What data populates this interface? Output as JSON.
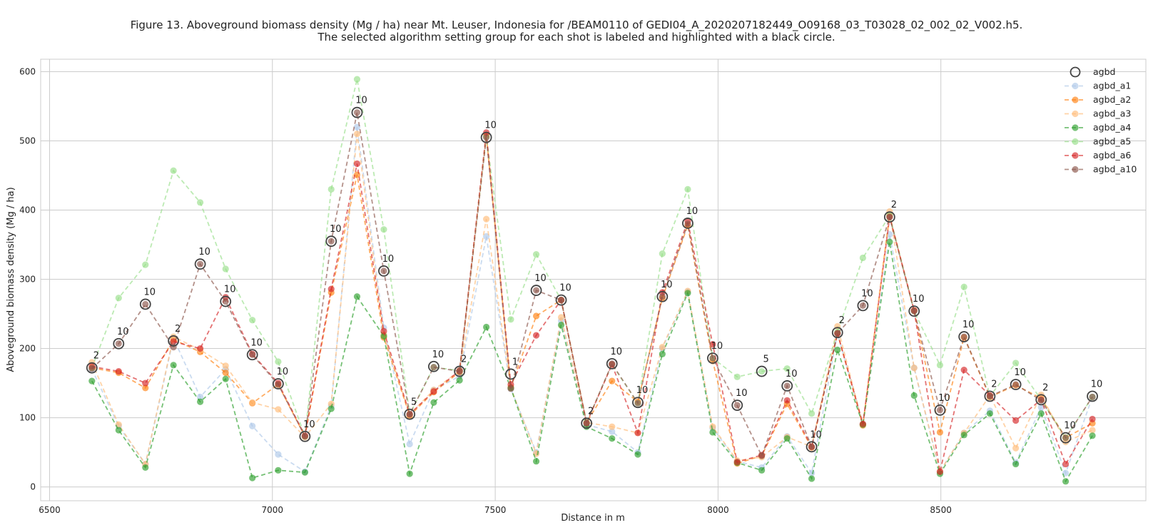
{
  "chart_data": {
    "type": "line",
    "title": "Figure 13. Aboveground biomass density (Mg / ha) near Mt. Leuser, Indonesia for /BEAM0110 of GEDI04_A_2020207182449_O09168_03_T03028_02_002_02_V002.h5.",
    "subtitle": "The selected algorithm setting group for each shot is labeled and highlighted with a black circle.",
    "xlabel": "Distance in m",
    "ylabel": "Aboveground biomass density (Mg / ha)",
    "xlim": [
      6480,
      8960
    ],
    "ylim": [
      -20,
      618
    ],
    "xticks": [
      6500,
      7000,
      7500,
      8000,
      8500
    ],
    "yticks": [
      0,
      100,
      200,
      300,
      400,
      500,
      600
    ],
    "grid": true,
    "legend_position": "top-right",
    "x": [
      6595,
      6655,
      6715,
      6778,
      6838,
      6895,
      6955,
      7013,
      7073,
      7132,
      7190,
      7250,
      7308,
      7362,
      7420,
      7480,
      7535,
      7592,
      7648,
      7705,
      7762,
      7820,
      7875,
      7932,
      7988,
      8043,
      8098,
      8155,
      8210,
      8268,
      8325,
      8385,
      8440,
      8498,
      8552,
      8610,
      8668,
      8725,
      8780,
      8840
    ],
    "series": [
      {
        "name": "agbd_a1",
        "color": "#aec7e8",
        "marker": "o",
        "values": [
          170,
          88,
          33,
          215,
          130,
          170,
          88,
          47,
          22,
          117,
          520,
          230,
          62,
          140,
          160,
          362,
          142,
          50,
          240,
          90,
          80,
          50,
          200,
          282,
          85,
          37,
          28,
          73,
          20,
          222,
          90,
          365,
          172,
          22,
          78,
          110,
          35,
          115,
          20,
          130
        ]
      },
      {
        "name": "agbd_a2",
        "color": "#ff7f0e",
        "marker": "o",
        "values": [
          172,
          165,
          143,
          213,
          195,
          165,
          121,
          148,
          73,
          281,
          451,
          216,
          103,
          137,
          166,
          508,
          144,
          247,
          270,
          93,
          153,
          123,
          273,
          378,
          182,
          34,
          45,
          120,
          57,
          222,
          89,
          392,
          255,
          79,
          216,
          130,
          147,
          128,
          71,
          92
        ]
      },
      {
        "name": "agbd_a3",
        "color": "#ffbb78",
        "marker": "o",
        "values": [
          180,
          90,
          33,
          217,
          198,
          175,
          122,
          112,
          72,
          120,
          510,
          220,
          105,
          140,
          168,
          387,
          143,
          48,
          245,
          93,
          87,
          78,
          202,
          283,
          87,
          38,
          43,
          72,
          58,
          232,
          90,
          398,
          172,
          22,
          78,
          132,
          56,
          133,
          65,
          82
        ]
      },
      {
        "name": "agbd_a4",
        "color": "#2ca02c",
        "marker": "o",
        "values": [
          153,
          82,
          28,
          176,
          123,
          156,
          13,
          24,
          21,
          113,
          275,
          218,
          19,
          122,
          154,
          231,
          143,
          37,
          234,
          87,
          70,
          47,
          192,
          280,
          79,
          35,
          24,
          70,
          12,
          198,
          90,
          354,
          132,
          19,
          75,
          106,
          33,
          106,
          8,
          74
        ]
      },
      {
        "name": "agbd_a5",
        "color": "#98df8a",
        "marker": "o",
        "values": [
          172,
          273,
          321,
          457,
          411,
          315,
          241,
          181,
          73,
          430,
          589,
          372,
          105,
          173,
          168,
          506,
          242,
          336,
          270,
          93,
          177,
          121,
          337,
          430,
          186,
          159,
          167,
          171,
          106,
          224,
          331,
          392,
          254,
          176,
          289,
          131,
          179,
          126,
          71,
          130
        ]
      },
      {
        "name": "agbd_a6",
        "color": "#d62728",
        "marker": "o",
        "values": [
          174,
          167,
          150,
          210,
          200,
          274,
          192,
          150,
          74,
          286,
          467,
          225,
          105,
          138,
          168,
          512,
          148,
          219,
          270,
          92,
          177,
          78,
          281,
          384,
          206,
          36,
          46,
          125,
          58,
          222,
          91,
          390,
          255,
          22,
          169,
          132,
          96,
          126,
          33,
          98
        ]
      },
      {
        "name": "agbd_a10",
        "color": "#8c564b",
        "marker": "o",
        "values": [
          171,
          207,
          264,
          202,
          322,
          268,
          191,
          148,
          73,
          355,
          541,
          312,
          105,
          173,
          167,
          505,
          142,
          284,
          270,
          92,
          178,
          121,
          275,
          380,
          186,
          118,
          45,
          146,
          58,
          222,
          262,
          390,
          254,
          111,
          217,
          131,
          148,
          125,
          71,
          130
        ]
      },
      {
        "name": "agbd",
        "color": "#444444",
        "marker": "open-circle",
        "values": [
          172,
          207,
          264,
          211,
          322,
          268,
          191,
          149,
          73,
          355,
          541,
          312,
          105,
          174,
          167,
          505,
          163,
          284,
          270,
          92,
          178,
          122,
          275,
          381,
          186,
          118,
          167,
          146,
          58,
          223,
          262,
          390,
          254,
          111,
          217,
          131,
          148,
          126,
          71,
          131
        ]
      }
    ],
    "selected_labels": [
      "2",
      "10",
      "10",
      "2",
      "10",
      "10",
      "10",
      "10",
      "10",
      "10",
      "10",
      "10",
      "5",
      "10",
      "2",
      "10",
      "1",
      "10",
      "10",
      "2",
      "10",
      "10",
      "10",
      "10",
      "10",
      "10",
      "5",
      "10",
      "10",
      "2",
      "10",
      "2",
      "10",
      "10",
      "10",
      "2",
      "10",
      "2",
      "10",
      "10"
    ],
    "legend": [
      "agbd",
      "agbd_a1",
      "agbd_a2",
      "agbd_a3",
      "agbd_a4",
      "agbd_a5",
      "agbd_a6",
      "agbd_a10"
    ]
  }
}
